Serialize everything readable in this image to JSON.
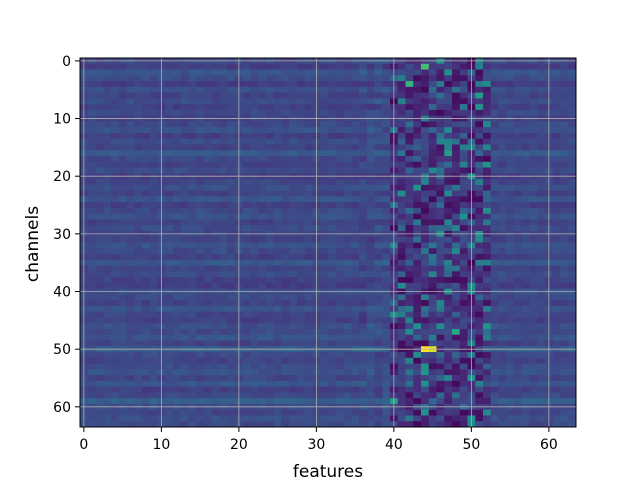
{
  "chart_data": {
    "type": "heatmap",
    "title": "",
    "xlabel": "features",
    "ylabel": "channels",
    "n_cols": 64,
    "n_rows": 64,
    "xlim": [
      -0.5,
      63.5
    ],
    "ylim": [
      63.5,
      -0.5
    ],
    "x_ticks": [
      0,
      10,
      20,
      30,
      40,
      50,
      60
    ],
    "y_ticks": [
      0,
      10,
      20,
      30,
      40,
      50,
      60
    ],
    "x_tick_labels": [
      "0",
      "10",
      "20",
      "30",
      "40",
      "50",
      "60"
    ],
    "y_tick_labels": [
      "0",
      "10",
      "20",
      "30",
      "40",
      "50",
      "60"
    ],
    "grid": true,
    "colormap": "viridis",
    "colormap_stops": [
      "#440154",
      "#472d7b",
      "#3b528b",
      "#2c728e",
      "#21918c",
      "#28ae80",
      "#5ec962",
      "#addc30",
      "#fde725"
    ],
    "background_level": 0.2,
    "row_offsets": [
      0.02,
      -0.01,
      0.06,
      0.03,
      -0.02,
      0.04,
      0.0,
      0.03,
      -0.01,
      0.02,
      0.0,
      0.02,
      0.05,
      -0.01,
      0.03,
      0.0,
      0.08,
      0.02,
      0.0,
      0.03,
      -0.02,
      0.01,
      0.04,
      0.0,
      0.06,
      -0.01,
      0.02,
      0.05,
      0.0,
      0.03,
      0.01,
      0.0,
      0.05,
      0.02,
      -0.01,
      0.07,
      0.01,
      0.03,
      0.0,
      -0.02,
      0.04,
      0.02,
      0.0,
      0.05,
      0.01,
      -0.01,
      0.04,
      0.02,
      0.06,
      0.0,
      0.09,
      0.02,
      0.0,
      0.03,
      0.05,
      0.01,
      0.06,
      -0.01,
      0.02,
      0.1,
      0.03,
      0.01,
      0.04,
      0.02
    ],
    "hotspots": [
      {
        "feature": 44,
        "channel": 1,
        "value": 0.7
      },
      {
        "feature": 42,
        "channel": 4,
        "value": 0.65
      },
      {
        "feature": 47,
        "channel": 2,
        "value": 0.5
      },
      {
        "feature": 51,
        "channel": 6,
        "value": 0.55
      },
      {
        "feature": 44,
        "channel": 50,
        "value": 1.0
      },
      {
        "feature": 45,
        "channel": 50,
        "value": 0.95
      },
      {
        "feature": 48,
        "channel": 47,
        "value": 0.6
      },
      {
        "feature": 40,
        "channel": 59,
        "value": 0.55
      },
      {
        "feature": 44,
        "channel": 61,
        "value": 0.5
      },
      {
        "feature": 47,
        "channel": 16,
        "value": 0.55
      },
      {
        "feature": 49,
        "channel": 27,
        "value": 0.5
      },
      {
        "feature": 43,
        "channel": 46,
        "value": 0.5
      },
      {
        "feature": 50,
        "channel": 40,
        "value": 0.45
      }
    ]
  }
}
